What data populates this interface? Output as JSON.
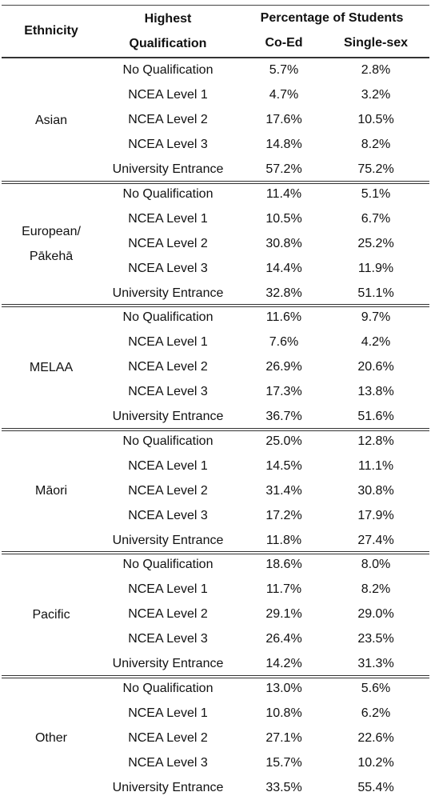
{
  "header": {
    "ethnicity": "Ethnicity",
    "qualification": "Highest Qualification",
    "percentage": "Percentage of Students",
    "coed": "Co-Ed",
    "single": "Single-sex"
  },
  "groups": [
    {
      "ethnicity": "Asian",
      "rows": [
        [
          "No Qualification",
          "5.7%",
          "2.8%"
        ],
        [
          "NCEA Level 1",
          "4.7%",
          "3.2%"
        ],
        [
          "NCEA Level 2",
          "17.6%",
          "10.5%"
        ],
        [
          "NCEA Level 3",
          "14.8%",
          "8.2%"
        ],
        [
          "University Entrance",
          "57.2%",
          "75.2%"
        ]
      ]
    },
    {
      "ethnicity": "European/ Pākehā",
      "rows": [
        [
          "No Qualification",
          "11.4%",
          "5.1%"
        ],
        [
          "NCEA Level 1",
          "10.5%",
          "6.7%"
        ],
        [
          "NCEA Level 2",
          "30.8%",
          "25.2%"
        ],
        [
          "NCEA Level 3",
          "14.4%",
          "11.9%"
        ],
        [
          "University Entrance",
          "32.8%",
          "51.1%"
        ]
      ]
    },
    {
      "ethnicity": "MELAA",
      "rows": [
        [
          "No Qualification",
          "11.6%",
          "9.7%"
        ],
        [
          "NCEA Level 1",
          "7.6%",
          "4.2%"
        ],
        [
          "NCEA Level 2",
          "26.9%",
          "20.6%"
        ],
        [
          "NCEA Level 3",
          "17.3%",
          "13.8%"
        ],
        [
          "University Entrance",
          "36.7%",
          "51.6%"
        ]
      ]
    },
    {
      "ethnicity": "Māori",
      "rows": [
        [
          "No Qualification",
          "25.0%",
          "12.8%"
        ],
        [
          "NCEA Level 1",
          "14.5%",
          "11.1%"
        ],
        [
          "NCEA Level 2",
          "31.4%",
          "30.8%"
        ],
        [
          "NCEA Level 3",
          "17.2%",
          "17.9%"
        ],
        [
          "University Entrance",
          "11.8%",
          "27.4%"
        ]
      ]
    },
    {
      "ethnicity": "Pacific",
      "rows": [
        [
          "No Qualification",
          "18.6%",
          "8.0%"
        ],
        [
          "NCEA Level 1",
          "11.7%",
          "8.2%"
        ],
        [
          "NCEA Level 2",
          "29.1%",
          "29.0%"
        ],
        [
          "NCEA Level 3",
          "26.4%",
          "23.5%"
        ],
        [
          "University Entrance",
          "14.2%",
          "31.3%"
        ]
      ]
    },
    {
      "ethnicity": "Other",
      "rows": [
        [
          "No Qualification",
          "13.0%",
          "5.6%"
        ],
        [
          "NCEA Level 1",
          "10.8%",
          "6.2%"
        ],
        [
          "NCEA Level 2",
          "27.1%",
          "22.6%"
        ],
        [
          "NCEA Level 3",
          "15.7%",
          "10.2%"
        ],
        [
          "University Entrance",
          "33.5%",
          "55.4%"
        ]
      ]
    }
  ]
}
